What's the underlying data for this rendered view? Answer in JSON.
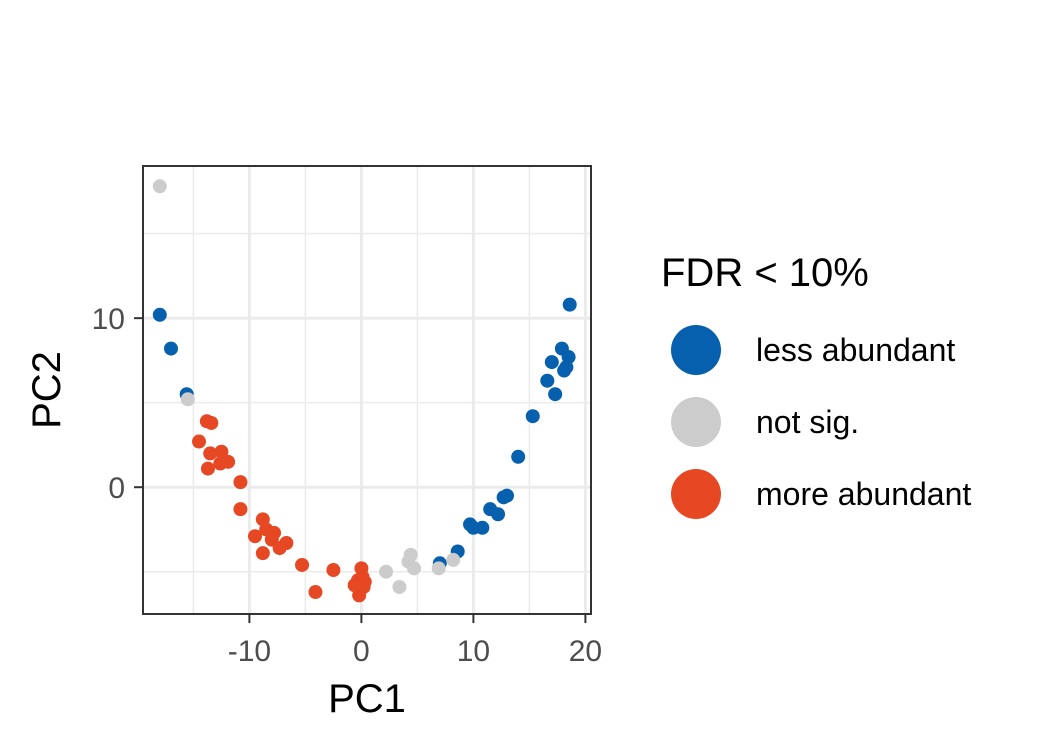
{
  "chart_data": {
    "type": "scatter",
    "xlabel": "PC1",
    "ylabel": "PC2",
    "xlim": [
      -19.5,
      20.5
    ],
    "ylim": [
      -7.5,
      19
    ],
    "xticks": [
      -10,
      0,
      10,
      20
    ],
    "xtick_labels": [
      "-10",
      "0",
      "10",
      "20"
    ],
    "xminor": [
      -15,
      -5,
      5,
      15
    ],
    "yticks": [
      0,
      10
    ],
    "ytick_labels": [
      "0",
      "10"
    ],
    "yminor": [
      -5,
      5,
      15
    ],
    "grid": true,
    "legend": {
      "title": "FDR < 10%",
      "placement": "right",
      "entries": [
        "less abundant",
        "not sig.",
        "more abundant"
      ]
    },
    "colors": {
      "less abundant": "#0660ad",
      "not sig.": "#cccccc",
      "more abundant": "#e64823"
    },
    "series": [
      {
        "name": "less abundant",
        "points": [
          [
            -18.0,
            10.2
          ],
          [
            -17.0,
            8.2
          ],
          [
            -15.6,
            5.5
          ],
          [
            7.0,
            -4.5
          ],
          [
            8.6,
            -3.8
          ],
          [
            9.7,
            -2.2
          ],
          [
            10.0,
            -2.4
          ],
          [
            10.8,
            -2.4
          ],
          [
            11.5,
            -1.3
          ],
          [
            12.2,
            -1.6
          ],
          [
            12.7,
            -0.6
          ],
          [
            13.0,
            -0.5
          ],
          [
            14.0,
            1.8
          ],
          [
            15.3,
            4.2
          ],
          [
            16.6,
            6.3
          ],
          [
            17.0,
            7.4
          ],
          [
            17.3,
            5.5
          ],
          [
            17.9,
            8.2
          ],
          [
            18.1,
            6.9
          ],
          [
            18.3,
            7.1
          ],
          [
            18.5,
            7.7
          ],
          [
            18.6,
            10.8
          ]
        ]
      },
      {
        "name": "not sig.",
        "points": [
          [
            -18.0,
            17.8
          ],
          [
            -15.5,
            5.2
          ],
          [
            2.2,
            -5.0
          ],
          [
            3.4,
            -5.9
          ],
          [
            4.2,
            -4.4
          ],
          [
            4.4,
            -4.0
          ],
          [
            4.7,
            -4.8
          ],
          [
            6.9,
            -4.8
          ],
          [
            8.2,
            -4.3
          ]
        ]
      },
      {
        "name": "more abundant",
        "points": [
          [
            -14.5,
            2.7
          ],
          [
            -13.8,
            3.9
          ],
          [
            -13.4,
            3.8
          ],
          [
            -13.5,
            2.0
          ],
          [
            -13.7,
            1.1
          ],
          [
            -12.5,
            2.1
          ],
          [
            -12.6,
            1.4
          ],
          [
            -11.9,
            1.5
          ],
          [
            -10.8,
            0.3
          ],
          [
            -10.8,
            -1.3
          ],
          [
            -9.5,
            -2.9
          ],
          [
            -8.8,
            -1.9
          ],
          [
            -8.8,
            -3.9
          ],
          [
            -8.5,
            -2.5
          ],
          [
            -8.0,
            -3.1
          ],
          [
            -7.8,
            -2.7
          ],
          [
            -7.3,
            -3.6
          ],
          [
            -6.7,
            -3.3
          ],
          [
            -5.3,
            -4.6
          ],
          [
            -4.1,
            -6.2
          ],
          [
            -2.5,
            -4.9
          ],
          [
            -0.6,
            -5.8
          ],
          [
            -0.3,
            -5.5
          ],
          [
            -0.2,
            -6.4
          ],
          [
            0.0,
            -4.8
          ],
          [
            0.1,
            -5.3
          ],
          [
            0.2,
            -5.9
          ],
          [
            0.3,
            -5.6
          ]
        ]
      }
    ]
  }
}
